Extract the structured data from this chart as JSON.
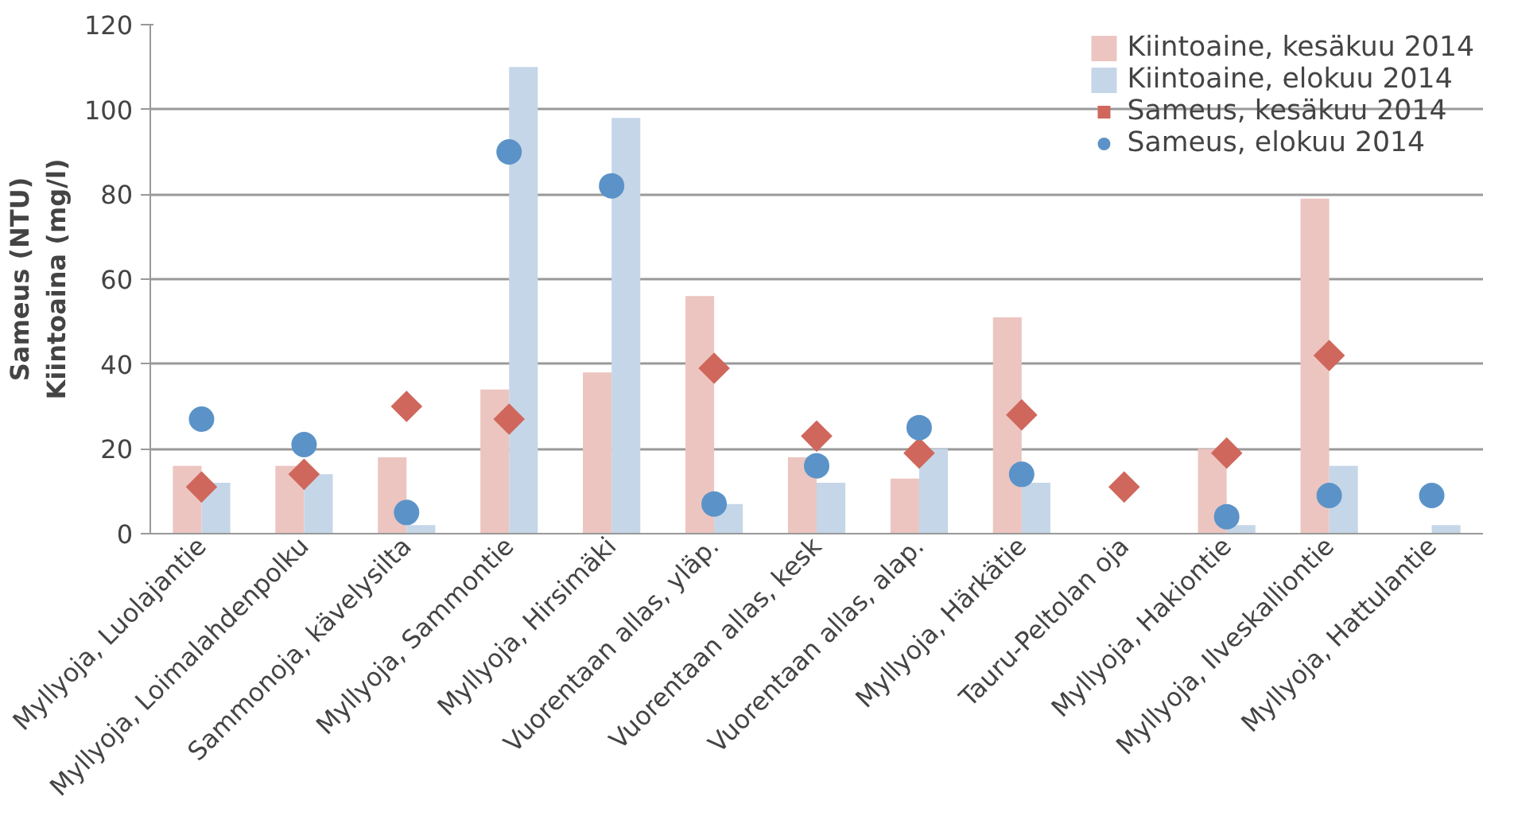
{
  "chart_data": {
    "type": "bar",
    "ylabel": "Sameus (NTU)\nKiintoaina (mg/l)",
    "categories": [
      "Myllyoja, Luolajantie",
      "Myllyoja, Loimalahdenpolku",
      "Sammonoja, kävelysilta",
      "Myllyoja, Sammontie",
      "Myllyoja, Hirsimäki",
      "Vuorentaan allas, yläp.",
      "Vuorentaan allas, kesk",
      "Vuorentaan allas, alap.",
      "Myllyoja, Härkätie",
      "Tauru-Peltolan oja",
      "Myllyoja, Hakiontie",
      "Myllyoja, Ilveskalliontie",
      "Myllyoja, Hattulantie"
    ],
    "series": [
      {
        "name": "Kiintoaine, kesäkuu 2014",
        "color": "#ecc5c0",
        "values": [
          16,
          16,
          18,
          34,
          38,
          56,
          18,
          13,
          51,
          null,
          20,
          79,
          null
        ]
      },
      {
        "name": "Kiintoaine, elokuu 2014",
        "color": "#c5d6e8",
        "values": [
          12,
          14,
          2,
          110,
          98,
          7,
          12,
          20,
          12,
          null,
          2,
          16,
          2
        ]
      },
      {
        "name": "Sameus, kesäkuu 2014",
        "type": "scatter",
        "marker": "diamond",
        "color": "#d0675c",
        "values": [
          11,
          14,
          30,
          27,
          null,
          39,
          23,
          19,
          28,
          11,
          19,
          42,
          null
        ]
      },
      {
        "name": "Sameus, elokuu 2014",
        "type": "scatter",
        "marker": "circle",
        "color": "#5b93c8",
        "values": [
          27,
          21,
          5,
          90,
          82,
          7,
          16,
          25,
          14,
          null,
          4,
          9,
          9
        ]
      }
    ],
    "ylim": [
      0,
      120
    ],
    "yticks": [
      0,
      20,
      40,
      60,
      80,
      100,
      120
    ],
    "grid": "y",
    "legend": "top right"
  }
}
